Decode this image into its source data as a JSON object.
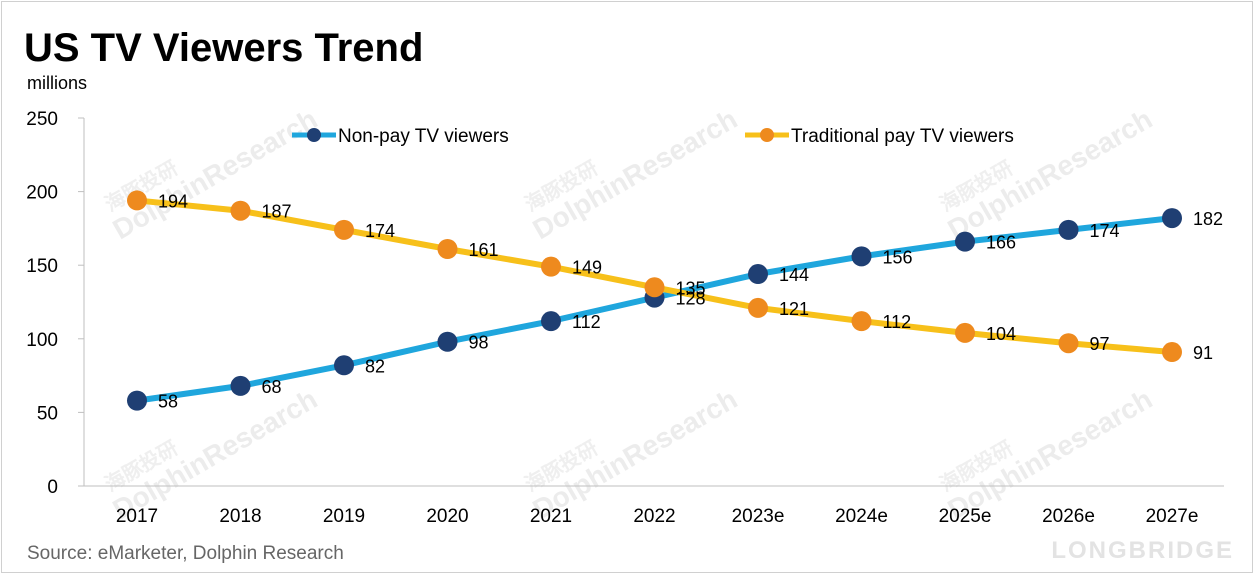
{
  "chart_data": {
    "type": "line",
    "title": "US TV Viewers Trend",
    "ylabel": "millions",
    "xlabel": "",
    "categories": [
      "2017",
      "2018",
      "2019",
      "2020",
      "2021",
      "2022",
      "2023e",
      "2024e",
      "2025e",
      "2026e",
      "2027e"
    ],
    "ylim": [
      0,
      250
    ],
    "yticks": [
      0,
      50,
      100,
      150,
      200,
      250
    ],
    "legend_position": "top",
    "grid": false,
    "series": [
      {
        "name": "Non-pay TV viewers",
        "values": [
          58,
          68,
          82,
          98,
          112,
          128,
          144,
          156,
          166,
          174,
          182
        ],
        "line_color": "#1fa6dd",
        "marker_color": "#1f3f73"
      },
      {
        "name": "Traditional pay TV viewers",
        "values": [
          194,
          187,
          174,
          161,
          149,
          135,
          121,
          112,
          104,
          97,
          91
        ],
        "line_color": "#f7c01a",
        "marker_color": "#ee8a1e"
      }
    ]
  },
  "source": "Source: eMarketer, Dolphin Research",
  "watermark": {
    "text": "DolphinResearch",
    "text_cn": "海豚投研",
    "brand": "LONGBRIDGE"
  }
}
